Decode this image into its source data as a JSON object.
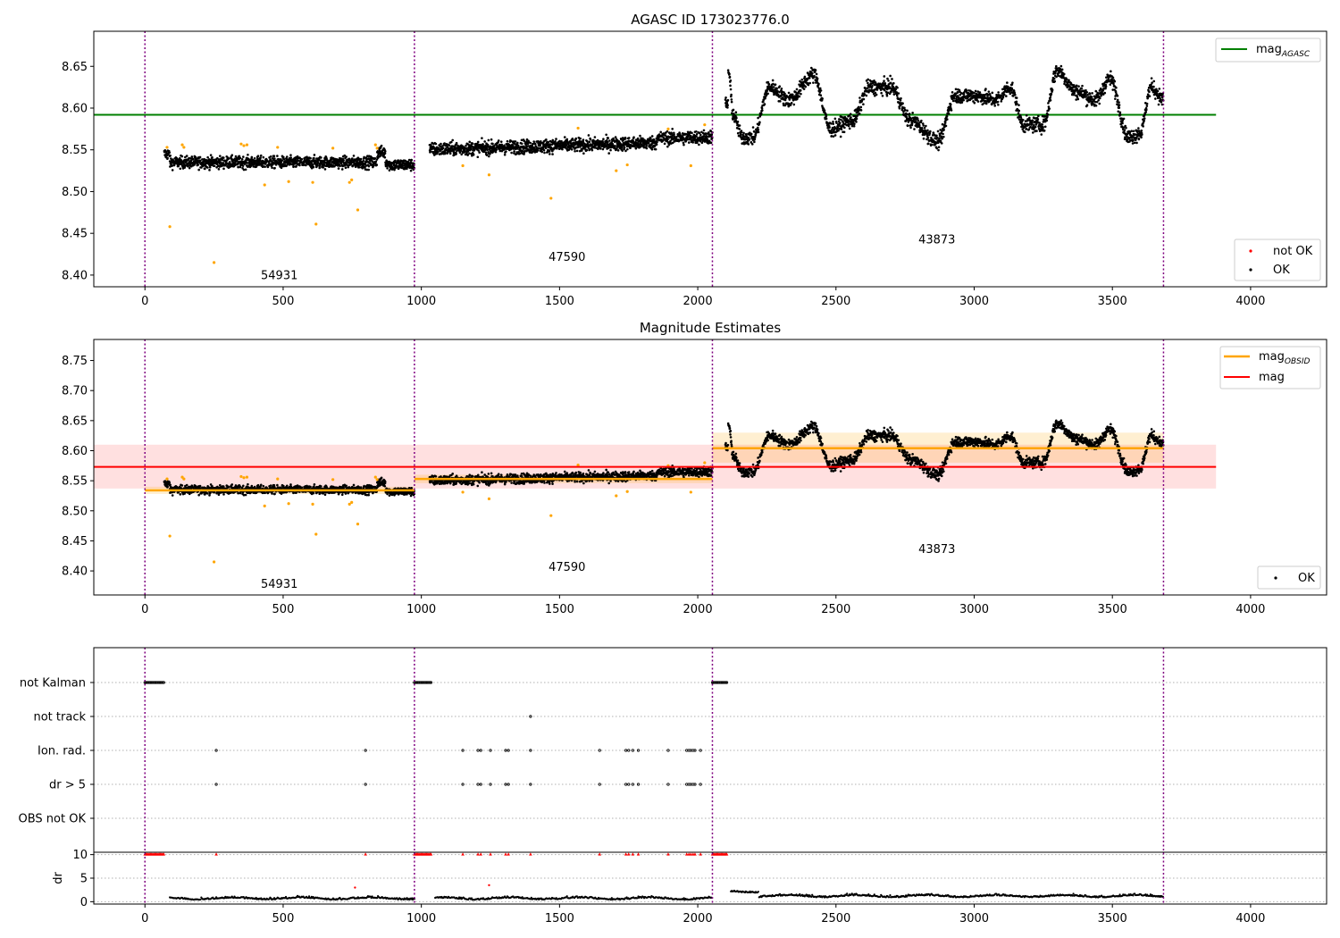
{
  "chart_data": [
    {
      "type": "scatter",
      "title": "AGASC ID 173023776.0",
      "xlim": [
        -185,
        4275
      ],
      "ylim": [
        8.386,
        8.692
      ],
      "xticks": [
        0,
        500,
        1000,
        1500,
        2000,
        2500,
        3000,
        3500,
        4000
      ],
      "yticks": [
        8.4,
        8.45,
        8.5,
        8.55,
        8.6,
        8.65
      ],
      "obs_boundaries": [
        0,
        975,
        2053,
        3685
      ],
      "obs_labels": [
        {
          "x": 484,
          "y": 8.395,
          "text": "54931"
        },
        {
          "x": 1525,
          "y": 8.417,
          "text": "47590"
        },
        {
          "x": 2863,
          "y": 8.438,
          "text": "43873"
        }
      ],
      "mag_agasc": {
        "value": 8.592,
        "x": [
          -185,
          3875
        ]
      },
      "series_not_ok": {
        "name": "not OK",
        "color": "#ff0000",
        "x": [
          80,
          90,
          135,
          141,
          250,
          348,
          358,
          369,
          433,
          480,
          520,
          607,
          619,
          680,
          740,
          748,
          770,
          834,
          840,
          1150,
          1245,
          1469,
          1567,
          1705,
          1745,
          1893,
          1975,
          2025
        ],
        "y": [
          8.553,
          8.458,
          8.556,
          8.553,
          8.415,
          8.557,
          8.555,
          8.556,
          8.508,
          8.553,
          8.512,
          8.511,
          8.461,
          8.552,
          8.511,
          8.514,
          8.478,
          8.556,
          8.552,
          8.531,
          8.52,
          8.492,
          8.576,
          8.525,
          8.532,
          8.575,
          8.531,
          8.58
        ]
      },
      "series_ok": {
        "name": "OK",
        "color": "#000000"
      },
      "segments": [
        {
          "x_range": [
            70,
            975
          ],
          "level": 8.535,
          "spread": 0.007
        },
        {
          "x_range": [
            1030,
            2053
          ],
          "level": 8.555,
          "spread": 0.008
        },
        {
          "x_range": [
            2100,
            3685
          ],
          "level": 8.605,
          "spread": 0.009
        }
      ],
      "legend_top": [
        {
          "label": "mag",
          "sub": "AGASC",
          "color": "#008000"
        }
      ],
      "legend_bottom": [
        {
          "label": "not OK",
          "color": "#ff0000"
        },
        {
          "label": "OK",
          "color": "#000000"
        }
      ]
    },
    {
      "type": "scatter",
      "title": "Magnitude Estimates",
      "xlim": [
        -185,
        4275
      ],
      "ylim": [
        8.36,
        8.785
      ],
      "xticks": [
        0,
        500,
        1000,
        1500,
        2000,
        2500,
        3000,
        3500,
        4000
      ],
      "yticks": [
        8.4,
        8.45,
        8.5,
        8.55,
        8.6,
        8.65,
        8.7,
        8.75
      ],
      "obs_boundaries": [
        0,
        975,
        2053,
        3685
      ],
      "obs_labels": [
        {
          "x": 484,
          "y": 8.372,
          "text": "54931"
        },
        {
          "x": 1525,
          "y": 8.4,
          "text": "47590"
        },
        {
          "x": 2863,
          "y": 8.43,
          "text": "43873"
        }
      ],
      "mag": {
        "value": 8.573,
        "band": [
          8.537,
          8.61
        ],
        "x": [
          -185,
          3875
        ]
      },
      "mag_obsid": [
        {
          "x": [
            0,
            975
          ],
          "value": 8.534,
          "band": [
            8.528,
            8.54
          ]
        },
        {
          "x": [
            975,
            2053
          ],
          "value": 8.553,
          "band": [
            8.546,
            8.56
          ]
        },
        {
          "x": [
            2053,
            3685
          ],
          "value": 8.604,
          "band": [
            8.58,
            8.63
          ]
        }
      ],
      "legend_top": [
        {
          "label": "mag",
          "sub": "OBSID",
          "color": "#ffa500"
        },
        {
          "label": "mag",
          "sub": "",
          "color": "#ff0000"
        }
      ],
      "legend_bottom": [
        {
          "label": "OK",
          "color": "#000000"
        }
      ]
    },
    {
      "type": "scatter",
      "title": "",
      "xlim": [
        -185,
        4275
      ],
      "xticks": [
        0,
        500,
        1000,
        1500,
        2000,
        2500,
        3000,
        3500,
        4000
      ],
      "obs_boundaries": [
        0,
        975,
        2053,
        3685
      ],
      "flag_rows": [
        "not Kalman",
        "not track",
        "Ion. rad.",
        "dr > 5",
        "OBS not OK"
      ],
      "flags": {
        "not Kalman": [
          [
            0,
            70
          ],
          [
            975,
            1035
          ],
          [
            2053,
            2105
          ]
        ],
        "not track": [
          1395
        ],
        "Ion. rad.": [
          258,
          798,
          1150,
          1205,
          1215,
          1250,
          1305,
          1315,
          1395,
          1645,
          1740,
          1750,
          1765,
          1785,
          1893,
          1960,
          1968,
          1975,
          1983,
          1990,
          2010
        ],
        "dr > 5": [
          258,
          798,
          1150,
          1205,
          1215,
          1250,
          1305,
          1315,
          1395,
          1645,
          1740,
          1750,
          1765,
          1785,
          1893,
          1960,
          1968,
          1975,
          1983,
          1990,
          2010
        ],
        "OBS not OK": []
      },
      "dr_ylabel": "dr",
      "dr_ylim": [
        0,
        10
      ],
      "dr_yticks": [
        0,
        5,
        10
      ],
      "dr_red_points": {
        "x": [
          760,
          1245
        ],
        "y": [
          3.0,
          3.5
        ]
      },
      "dr_clipped_x": [
        258,
        798,
        1150,
        1205,
        1215,
        1250,
        1305,
        1315,
        1395,
        1645,
        1740,
        1750,
        1765,
        1785,
        1893,
        1960,
        1968,
        1975,
        1983,
        1990,
        2010
      ]
    }
  ]
}
